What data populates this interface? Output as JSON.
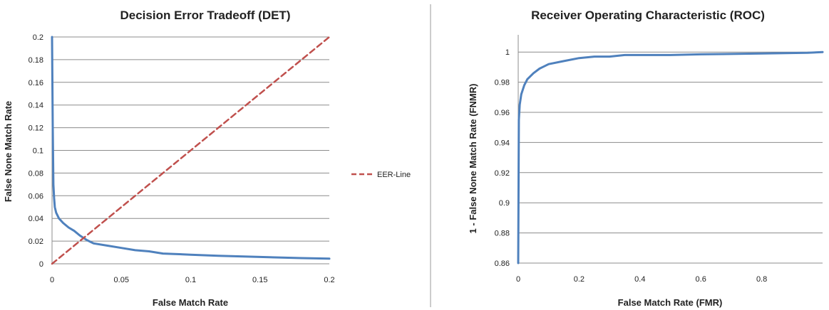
{
  "chart_data": [
    {
      "type": "line",
      "title": "Decision Error Tradeoff (DET)",
      "xlabel": "False Match Rate",
      "ylabel": "False None Match Rate",
      "xlim": [
        0,
        0.2
      ],
      "ylim": [
        0,
        0.2
      ],
      "x_ticks": [
        "0",
        "0.05",
        "0.1",
        "0.15",
        "0.2"
      ],
      "y_ticks": [
        "0",
        "0.02",
        "0.04",
        "0.06",
        "0.08",
        "0.1",
        "0.12",
        "0.14",
        "0.16",
        "0.18",
        "0.2"
      ],
      "grid": "horizontal",
      "legend": "right",
      "series": [
        {
          "color": "#4f81bd",
          "x": [
            0,
            0.0005,
            0.001,
            0.0015,
            0.002,
            0.003,
            0.005,
            0.008,
            0.012,
            0.016,
            0.02,
            0.025,
            0.03,
            0.04,
            0.05,
            0.06,
            0.07,
            0.08,
            0.1,
            0.12,
            0.15,
            0.18,
            0.2
          ],
          "y": [
            0.2,
            0.12,
            0.07,
            0.058,
            0.05,
            0.045,
            0.04,
            0.036,
            0.032,
            0.029,
            0.025,
            0.021,
            0.018,
            0.016,
            0.014,
            0.012,
            0.011,
            0.009,
            0.008,
            0.007,
            0.006,
            0.005,
            0.0045
          ]
        },
        {
          "name": "EER-Line",
          "color": "#c0504d",
          "dash": true,
          "x": [
            0,
            0.2
          ],
          "y": [
            0,
            0.2
          ]
        }
      ]
    },
    {
      "type": "line",
      "title": "Receiver Operating Characteristic (ROC)",
      "xlabel": "False Match Rate (FMR)",
      "ylabel": "1 - False None Match Rate (FNMR)",
      "xlim": [
        0,
        1
      ],
      "ylim": [
        0.86,
        1.01
      ],
      "x_ticks": [
        "0",
        "0.2",
        "0.4",
        "0.6",
        "0.8"
      ],
      "y_ticks": [
        "0.86",
        "0.88",
        "0.9",
        "0.92",
        "0.94",
        "0.96",
        "0.98",
        "1"
      ],
      "grid": "horizontal",
      "series": [
        {
          "color": "#4f81bd",
          "x": [
            0,
            0.002,
            0.005,
            0.01,
            0.02,
            0.03,
            0.05,
            0.07,
            0.1,
            0.15,
            0.2,
            0.25,
            0.3,
            0.35,
            0.5,
            0.6,
            0.8,
            0.95,
            1.0
          ],
          "y": [
            0.86,
            0.955,
            0.965,
            0.972,
            0.978,
            0.982,
            0.986,
            0.989,
            0.992,
            0.994,
            0.996,
            0.997,
            0.997,
            0.998,
            0.998,
            0.9985,
            0.999,
            0.9995,
            1.0
          ]
        }
      ]
    }
  ]
}
